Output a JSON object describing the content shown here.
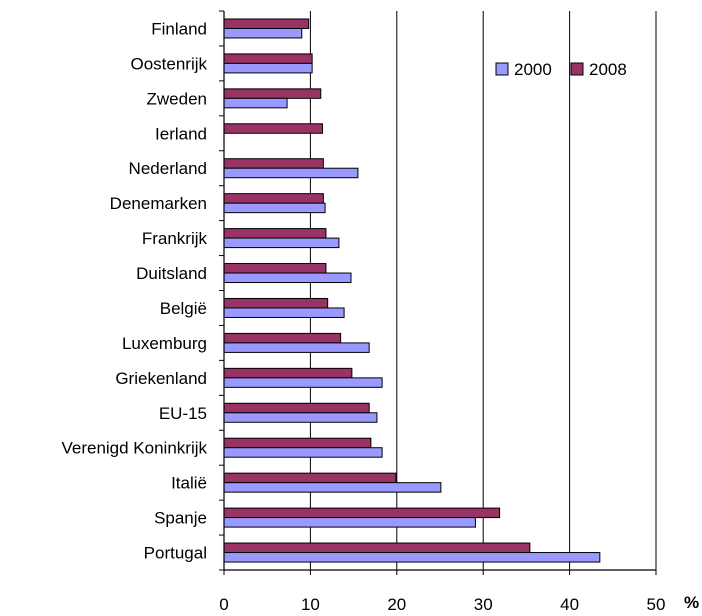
{
  "chart_data": {
    "type": "bar",
    "orientation": "horizontal",
    "categories": [
      "Finland",
      "Oostenrijk",
      "Zweden",
      "Ierland",
      "Nederland",
      "Denemarken",
      "Frankrijk",
      "Duitsland",
      "België",
      "Luxemburg",
      "Griekenland",
      "EU-15",
      "Verenigd Koninkrijk",
      "Italië",
      "Spanje",
      "Portugal"
    ],
    "series": [
      {
        "name": "2000",
        "color": "#9999ff",
        "values": [
          9,
          10.2,
          7.3,
          null,
          15.5,
          11.7,
          13.3,
          14.7,
          13.9,
          16.8,
          18.3,
          17.7,
          18.3,
          25.1,
          29.1,
          43.5
        ]
      },
      {
        "name": "2008",
        "color": "#993366",
        "values": [
          9.8,
          10.2,
          11.2,
          11.4,
          11.5,
          11.5,
          11.8,
          11.8,
          12.0,
          13.5,
          14.8,
          16.8,
          17.0,
          19.9,
          31.9,
          35.4
        ]
      }
    ],
    "xlim": [
      0,
      50
    ],
    "xticks": [
      "0",
      "10",
      "20",
      "30",
      "40",
      "50"
    ],
    "x_unit": "%",
    "grid": "vertical",
    "legend": "top-right"
  }
}
